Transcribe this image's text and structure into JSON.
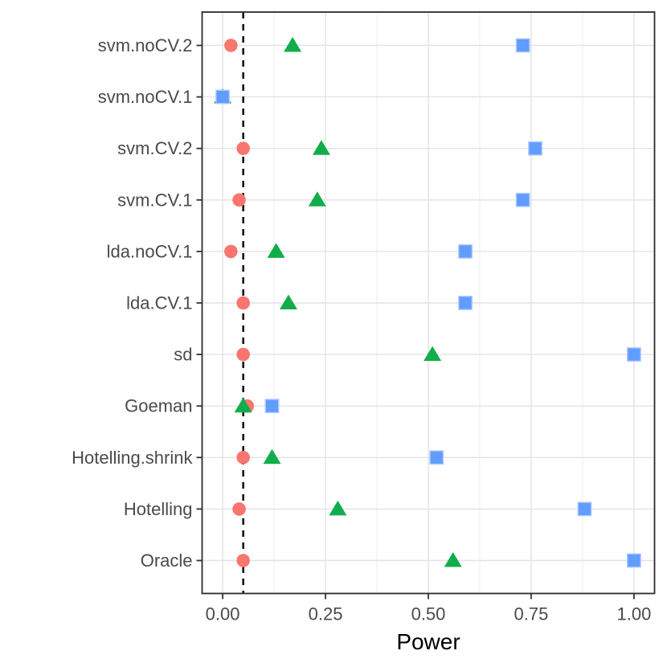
{
  "chart_data": {
    "type": "scatter",
    "subtype": "horizontal-dot-plot",
    "title": "",
    "xlabel": "Power",
    "ylabel": "",
    "legend": "none",
    "grid": {
      "major": true,
      "minor_x": true,
      "minor_y": false
    },
    "categories_top_to_bottom": [
      "svm.noCV.2",
      "svm.noCV.1",
      "svm.CV.2",
      "svm.CV.1",
      "lda.noCV.1",
      "lda.CV.1",
      "sd",
      "Goeman",
      "Hotelling.shrink",
      "Hotelling",
      "Oracle"
    ],
    "series": [
      {
        "name": "series-red-circle",
        "marker": "circle",
        "color": "#F8766D",
        "values": [
          0.02,
          null,
          0.05,
          0.04,
          0.02,
          0.05,
          0.05,
          0.06,
          0.05,
          0.04,
          0.05
        ]
      },
      {
        "name": "series-green-triangle",
        "marker": "triangle",
        "color": "#12AD4B",
        "values": [
          0.17,
          0.0,
          0.24,
          0.23,
          0.13,
          0.16,
          0.51,
          0.05,
          0.12,
          0.28,
          0.56
        ]
      },
      {
        "name": "series-blue-square",
        "marker": "square",
        "color": "#619CFF",
        "marker_edge_color": "#AFCBFD",
        "values": [
          0.73,
          0.0,
          0.76,
          0.73,
          0.59,
          0.59,
          1.0,
          0.12,
          0.52,
          0.88,
          1.0
        ]
      }
    ],
    "reference_line": {
      "x": 0.05,
      "style": "dashed",
      "color": "#141414"
    },
    "x_axis": {
      "range": [
        -0.05,
        1.05
      ],
      "ticks": [
        0,
        0.25,
        0.5,
        0.75,
        1.0
      ],
      "tick_labels": [
        "0.00",
        "0.25",
        "0.50",
        "0.75",
        "1.00"
      ],
      "minor_ticks": [
        0.125,
        0.375,
        0.625,
        0.875
      ]
    },
    "panel": {
      "background": "#ffffff",
      "border_color": "#2b2b2b",
      "grid_major_color": "#e3e3e3",
      "grid_minor_color": "#f0f0f0"
    }
  }
}
